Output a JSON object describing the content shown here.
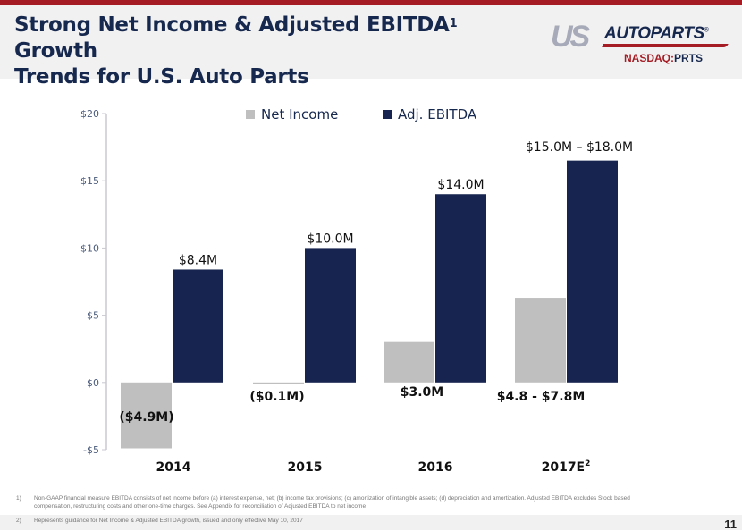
{
  "header": {
    "title_line1": "Strong Net Income & Adjusted EBITDA",
    "title_sup": "1",
    "title_line1_end": " Growth",
    "title_line2": "Trends for U.S. Auto Parts",
    "logo": {
      "us": "US",
      "autoparts": "AUTOPARTS",
      "reg": "®"
    },
    "ticker_exchange": "NASDAQ:",
    "ticker_symbol": "PRTS",
    "colors": {
      "accent_red": "#a51c24",
      "navy": "#17284f"
    }
  },
  "chart_data": {
    "type": "bar",
    "title": "",
    "xlabel": "",
    "ylabel": "",
    "categories": [
      "2014",
      "2015",
      "2016",
      "2017E"
    ],
    "category_sups": [
      "",
      "",
      "",
      "2"
    ],
    "ylim": [
      -5,
      20
    ],
    "yticks": [
      20,
      15,
      10,
      5,
      0,
      -5
    ],
    "ytick_labels": [
      "$20",
      "$15",
      "$10",
      "$5",
      "$0",
      "-$5"
    ],
    "grid": false,
    "legend_position": "top-center",
    "series": [
      {
        "name": "Net Income",
        "color": "#bfbfbf",
        "values": [
          -4.9,
          -0.1,
          3.0,
          6.3
        ],
        "labels": [
          "($4.9M)",
          "($0.1M)",
          "$3.0M",
          "$4.8 - $7.8M"
        ]
      },
      {
        "name": "Adj. EBITDA",
        "color": "#17244f",
        "values": [
          8.4,
          10.0,
          14.0,
          16.5
        ],
        "labels": [
          "$8.4M",
          "$10.0M",
          "$14.0M",
          "$15.0M – $18.0M"
        ]
      }
    ]
  },
  "footnotes": [
    {
      "num": "1)",
      "text": "Non-GAAP financial measure EBITDA consists of net income before (a) interest expense, net; (b) income tax provisions; (c) amortization of intangible assets; (d) depreciation and amortization. Adjusted EBITDA excludes Stock based compensation, restructuring costs and other one-time charges. See Appendix for reconciliation of Adjusted EBITDA to net income"
    },
    {
      "num": "2)",
      "text": "Represents guidance for Net Income & Adjusted EBITDA growth, issued and only effective May 10, 2017"
    }
  ],
  "page_number": "11"
}
